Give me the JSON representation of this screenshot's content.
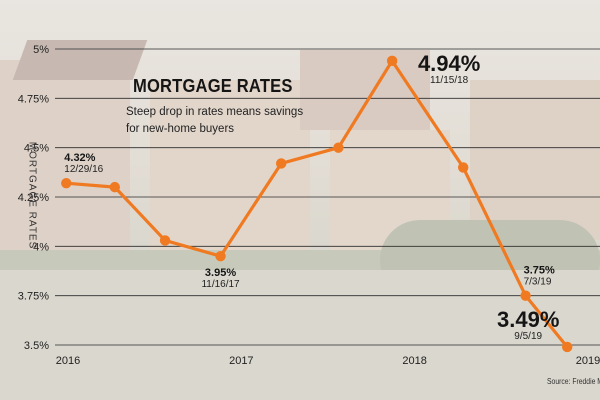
{
  "chart_data": {
    "type": "line",
    "title": "MORTGAGE RATES",
    "subtitle": "Steep drop in rates means savings for new-home buyers",
    "ylabel": "MORTGAGE RATES",
    "source": "Source: Freddie Mac",
    "ylim": [
      3.5,
      5.0
    ],
    "y_ticks": [
      {
        "value": 5.0,
        "label": "5%"
      },
      {
        "value": 4.75,
        "label": "4.75%"
      },
      {
        "value": 4.5,
        "label": "4.5%"
      },
      {
        "value": 4.25,
        "label": "4.25%"
      },
      {
        "value": 4.0,
        "label": "4%"
      },
      {
        "value": 3.75,
        "label": "3.75%"
      },
      {
        "value": 3.5,
        "label": "3.5%"
      }
    ],
    "x_ticks": [
      {
        "value": 2016.0,
        "label": "2016"
      },
      {
        "value": 2017.0,
        "label": "2017"
      },
      {
        "value": 2018.0,
        "label": "2018"
      },
      {
        "value": 2019.0,
        "label": "2019"
      }
    ],
    "xlim": [
      2016.0,
      2019.0
    ],
    "points": [
      {
        "x": 2015.99,
        "y": 4.32
      },
      {
        "x": 2016.27,
        "y": 4.3
      },
      {
        "x": 2016.56,
        "y": 4.03
      },
      {
        "x": 2016.88,
        "y": 3.95
      },
      {
        "x": 2017.23,
        "y": 4.42
      },
      {
        "x": 2017.56,
        "y": 4.5
      },
      {
        "x": 2017.87,
        "y": 4.94
      },
      {
        "x": 2018.28,
        "y": 4.4
      },
      {
        "x": 2018.64,
        "y": 3.75
      },
      {
        "x": 2018.88,
        "y": 3.49
      }
    ],
    "annotations": [
      {
        "point": 0,
        "value": "4.32%",
        "date": "12/29/16",
        "size": "small",
        "align": "start",
        "pos": "above-right"
      },
      {
        "point": 3,
        "value": "3.95%",
        "date": "11/16/17",
        "size": "small",
        "align": "middle",
        "pos": "below"
      },
      {
        "point": 6,
        "value": "4.94%",
        "date": "11/15/18",
        "size": "large",
        "align": "middle",
        "pos": "right"
      },
      {
        "point": 8,
        "value": "3.75%",
        "date": "7/3/19",
        "size": "small",
        "align": "start",
        "pos": "above-right"
      },
      {
        "point": 9,
        "value": "3.49%",
        "date": "9/5/19",
        "size": "large",
        "align": "middle",
        "pos": "above-left"
      }
    ],
    "colors": {
      "line": "#f07a21",
      "grid": "#2b2b2b",
      "text": "#151515"
    }
  }
}
